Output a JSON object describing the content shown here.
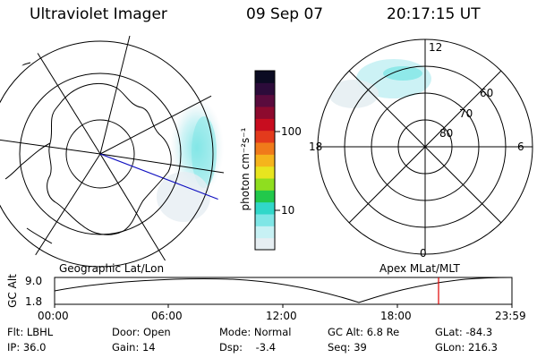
{
  "header": {
    "instrument": "Ultraviolet Imager",
    "date": "09 Sep 07",
    "time": "20:17:15 UT"
  },
  "colorbar": {
    "unit_label": "photon cm⁻²s⁻¹",
    "ticks": [
      "100",
      "10"
    ],
    "scale": "log",
    "colors": [
      "#e6eef2",
      "#c7f1f4",
      "#7fe6e6",
      "#31d7c9",
      "#22c84b",
      "#8fde1f",
      "#e8e51f",
      "#f5b41c",
      "#f07a1a",
      "#e33a1c",
      "#c80d1f",
      "#8d0a2e",
      "#5a0b3d",
      "#2c0b3a",
      "#0b0b22"
    ]
  },
  "left_map": {
    "label": "Geographic Lat/Lon"
  },
  "right_map": {
    "label": "Apex MLat/MLT",
    "mlt_labels": {
      "top": "12",
      "left": "18",
      "right": "6",
      "bottom": "0"
    },
    "lat_labels": [
      "60",
      "70",
      "80"
    ]
  },
  "altitude_plot": {
    "ylabel": "GC Alt",
    "y_ticks": [
      "9.0",
      "1.8"
    ],
    "x_ticks": [
      "00:00",
      "06:00",
      "12:00",
      "18:00",
      "23:59"
    ],
    "current_time_marker": "20:17:15",
    "marker_color": "#e00000"
  },
  "info": {
    "row1": [
      "Flt: LBHL",
      "Door: Open",
      "Mode: Normal",
      "GC Alt: 6.8 Re",
      "GLat: -84.3"
    ],
    "row2": [
      "IP: 36.0",
      "Gain: 14",
      "Dsp:    -3.4",
      "Seq: 39",
      "GLon: 216.3"
    ]
  }
}
